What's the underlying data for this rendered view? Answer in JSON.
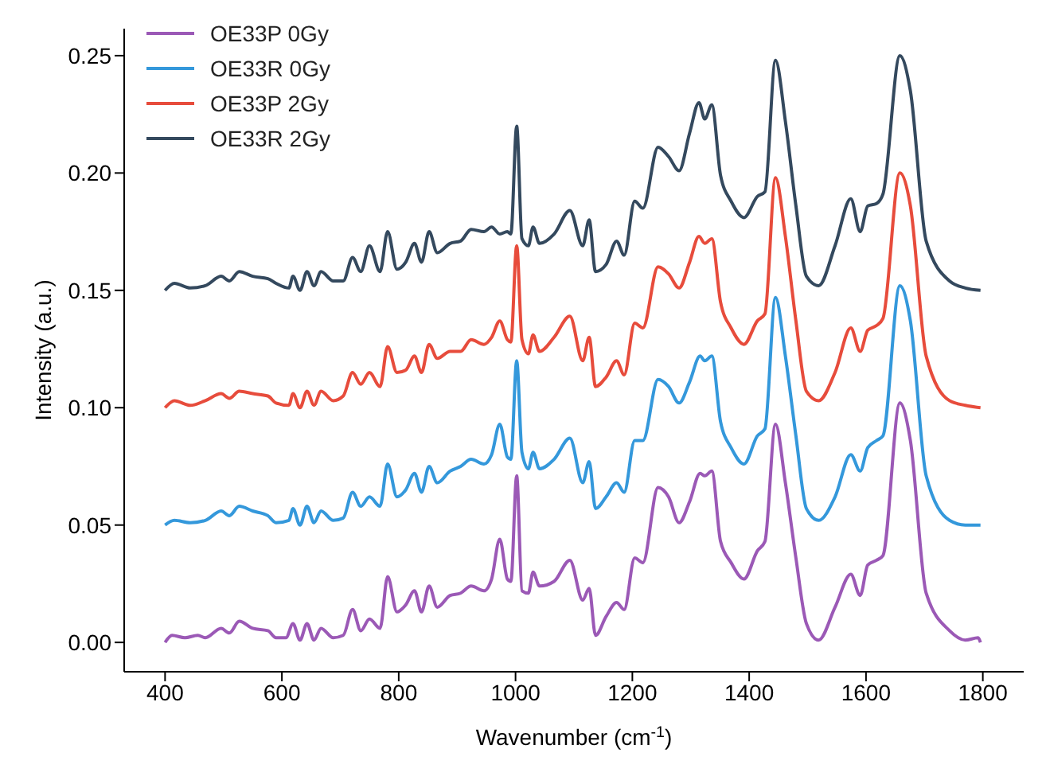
{
  "chart_data": {
    "type": "line",
    "xlabel": "Wavenumber (cm$^{-1}$)",
    "ylabel": "Intensity (a.u.)",
    "xlim": [
      330,
      1870
    ],
    "ylim": [
      -0.0125,
      0.2615
    ],
    "xticks": [
      400,
      600,
      800,
      1000,
      1200,
      1400,
      1600,
      1800
    ],
    "yticks": [
      {
        "value": 0,
        "label": "0.00"
      },
      {
        "value": 0.05,
        "label": "0.05"
      },
      {
        "value": 0.1,
        "label": "0.10"
      },
      {
        "value": 0.15,
        "label": "0.15"
      },
      {
        "value": 0.2,
        "label": "0.20"
      },
      {
        "value": 0.25,
        "label": "0.25"
      }
    ],
    "grid": false,
    "legend": "top left",
    "marker": "none",
    "line_style": "solid",
    "series": [
      {
        "name": "OE33P 0Gy",
        "color": "#9b59b6",
        "x": [
          400,
          412,
          434,
          456,
          469,
          496,
          510,
          527,
          550,
          576,
          590,
          607,
          619,
          631,
          643,
          655,
          667,
          688,
          705,
          721,
          735,
          750,
          768,
          781,
          797,
          812,
          827,
          839,
          852,
          866,
          888,
          906,
          924,
          946,
          959,
          973,
          986,
          992,
          1002,
          1011,
          1022,
          1030,
          1041,
          1066,
          1093,
          1115,
          1126,
          1137,
          1155,
          1173,
          1186,
          1204,
          1218,
          1244,
          1262,
          1280,
          1298,
          1316,
          1324,
          1336,
          1351,
          1369,
          1391,
          1414,
          1427,
          1445,
          1462,
          1480,
          1498,
          1519,
          1547,
          1574,
          1590,
          1603,
          1618,
          1629,
          1658,
          1676,
          1703,
          1743,
          1770,
          1792,
          1796
        ],
        "values": [
          0,
          0.003,
          0.002,
          0.003,
          0.002,
          0.006,
          0.004,
          0.009,
          0.006,
          0.005,
          0.002,
          0.002,
          0.008,
          0.001,
          0.008,
          0.001,
          0.006,
          0.002,
          0.003,
          0.014,
          0.005,
          0.01,
          0.006,
          0.028,
          0.013,
          0.016,
          0.022,
          0.013,
          0.024,
          0.015,
          0.02,
          0.021,
          0.024,
          0.022,
          0.027,
          0.044,
          0.027,
          0.026,
          0.071,
          0.022,
          0.021,
          0.03,
          0.024,
          0.026,
          0.035,
          0.018,
          0.023,
          0.003,
          0.011,
          0.017,
          0.014,
          0.036,
          0.034,
          0.066,
          0.062,
          0.051,
          0.06,
          0.072,
          0.071,
          0.073,
          0.043,
          0.034,
          0.027,
          0.039,
          0.043,
          0.093,
          0.068,
          0.036,
          0.008,
          0.001,
          0.015,
          0.029,
          0.02,
          0.033,
          0.035,
          0.037,
          0.102,
          0.086,
          0.021,
          0.005,
          0.001,
          0.002,
          0
        ]
      },
      {
        "name": "OE33R 0Gy",
        "color": "#3498db",
        "x": [
          400,
          416,
          443,
          469,
          496,
          510,
          527,
          550,
          576,
          590,
          612,
          619,
          631,
          643,
          655,
          667,
          688,
          705,
          721,
          735,
          750,
          768,
          781,
          797,
          812,
          827,
          839,
          852,
          866,
          888,
          906,
          924,
          946,
          959,
          973,
          986,
          992,
          1002,
          1011,
          1022,
          1030,
          1041,
          1066,
          1093,
          1115,
          1126,
          1137,
          1155,
          1173,
          1186,
          1204,
          1218,
          1244,
          1262,
          1280,
          1298,
          1316,
          1324,
          1336,
          1351,
          1369,
          1391,
          1414,
          1427,
          1445,
          1462,
          1480,
          1498,
          1519,
          1547,
          1574,
          1590,
          1603,
          1618,
          1629,
          1658,
          1676,
          1703,
          1743,
          1770,
          1796
        ],
        "values": [
          0.05,
          0.052,
          0.051,
          0.052,
          0.056,
          0.054,
          0.058,
          0.056,
          0.054,
          0.051,
          0.052,
          0.057,
          0.05,
          0.058,
          0.051,
          0.056,
          0.052,
          0.053,
          0.064,
          0.058,
          0.062,
          0.058,
          0.076,
          0.062,
          0.065,
          0.072,
          0.064,
          0.075,
          0.068,
          0.073,
          0.075,
          0.078,
          0.076,
          0.08,
          0.093,
          0.079,
          0.078,
          0.12,
          0.081,
          0.074,
          0.081,
          0.074,
          0.078,
          0.087,
          0.068,
          0.077,
          0.057,
          0.062,
          0.068,
          0.064,
          0.086,
          0.086,
          0.112,
          0.109,
          0.102,
          0.111,
          0.122,
          0.12,
          0.122,
          0.094,
          0.083,
          0.076,
          0.088,
          0.091,
          0.147,
          0.122,
          0.088,
          0.057,
          0.052,
          0.062,
          0.08,
          0.073,
          0.083,
          0.086,
          0.088,
          0.152,
          0.137,
          0.071,
          0.052,
          0.05,
          0.05
        ]
      },
      {
        "name": "OE33P 2Gy",
        "color": "#e74c3c",
        "x": [
          400,
          416,
          443,
          469,
          496,
          510,
          527,
          550,
          576,
          590,
          612,
          619,
          631,
          643,
          655,
          667,
          688,
          705,
          721,
          735,
          750,
          768,
          781,
          797,
          812,
          827,
          839,
          852,
          866,
          888,
          906,
          924,
          946,
          959,
          973,
          986,
          992,
          1002,
          1011,
          1022,
          1030,
          1041,
          1066,
          1093,
          1115,
          1126,
          1137,
          1155,
          1173,
          1186,
          1204,
          1218,
          1244,
          1262,
          1280,
          1298,
          1314,
          1324,
          1336,
          1351,
          1369,
          1391,
          1414,
          1427,
          1445,
          1462,
          1480,
          1498,
          1519,
          1547,
          1574,
          1590,
          1603,
          1618,
          1629,
          1658,
          1676,
          1703,
          1743,
          1770,
          1796
        ],
        "values": [
          0.1,
          0.103,
          0.101,
          0.103,
          0.106,
          0.104,
          0.107,
          0.106,
          0.105,
          0.102,
          0.101,
          0.106,
          0.1,
          0.107,
          0.101,
          0.107,
          0.103,
          0.105,
          0.115,
          0.11,
          0.115,
          0.109,
          0.126,
          0.115,
          0.116,
          0.122,
          0.115,
          0.127,
          0.121,
          0.124,
          0.124,
          0.129,
          0.127,
          0.13,
          0.137,
          0.129,
          0.128,
          0.169,
          0.129,
          0.123,
          0.131,
          0.124,
          0.13,
          0.139,
          0.12,
          0.13,
          0.109,
          0.113,
          0.12,
          0.114,
          0.136,
          0.134,
          0.16,
          0.157,
          0.151,
          0.162,
          0.173,
          0.17,
          0.172,
          0.145,
          0.134,
          0.127,
          0.137,
          0.14,
          0.198,
          0.173,
          0.137,
          0.107,
          0.103,
          0.115,
          0.134,
          0.124,
          0.133,
          0.135,
          0.138,
          0.2,
          0.186,
          0.122,
          0.103,
          0.101,
          0.1
        ]
      },
      {
        "name": "OE33R 2Gy",
        "color": "#34495e",
        "x": [
          400,
          416,
          443,
          469,
          496,
          510,
          527,
          550,
          576,
          590,
          612,
          619,
          631,
          643,
          655,
          667,
          688,
          705,
          721,
          735,
          750,
          768,
          781,
          797,
          812,
          827,
          839,
          852,
          866,
          888,
          906,
          924,
          946,
          959,
          973,
          986,
          992,
          1002,
          1011,
          1022,
          1030,
          1041,
          1066,
          1093,
          1115,
          1126,
          1137,
          1155,
          1173,
          1186,
          1204,
          1218,
          1244,
          1262,
          1280,
          1298,
          1314,
          1324,
          1336,
          1351,
          1369,
          1391,
          1414,
          1427,
          1445,
          1462,
          1480,
          1498,
          1519,
          1547,
          1574,
          1590,
          1603,
          1618,
          1629,
          1658,
          1676,
          1703,
          1743,
          1770,
          1796
        ],
        "values": [
          0.15,
          0.153,
          0.151,
          0.152,
          0.156,
          0.154,
          0.158,
          0.156,
          0.155,
          0.153,
          0.151,
          0.156,
          0.15,
          0.158,
          0.152,
          0.158,
          0.154,
          0.154,
          0.164,
          0.158,
          0.169,
          0.158,
          0.175,
          0.159,
          0.162,
          0.17,
          0.162,
          0.175,
          0.166,
          0.17,
          0.171,
          0.176,
          0.175,
          0.177,
          0.174,
          0.175,
          0.174,
          0.22,
          0.172,
          0.169,
          0.177,
          0.17,
          0.174,
          0.184,
          0.169,
          0.18,
          0.158,
          0.161,
          0.171,
          0.165,
          0.188,
          0.185,
          0.211,
          0.207,
          0.201,
          0.217,
          0.23,
          0.223,
          0.229,
          0.199,
          0.188,
          0.181,
          0.19,
          0.192,
          0.248,
          0.222,
          0.186,
          0.156,
          0.152,
          0.169,
          0.189,
          0.175,
          0.186,
          0.187,
          0.191,
          0.25,
          0.235,
          0.171,
          0.154,
          0.151,
          0.15
        ]
      }
    ]
  }
}
